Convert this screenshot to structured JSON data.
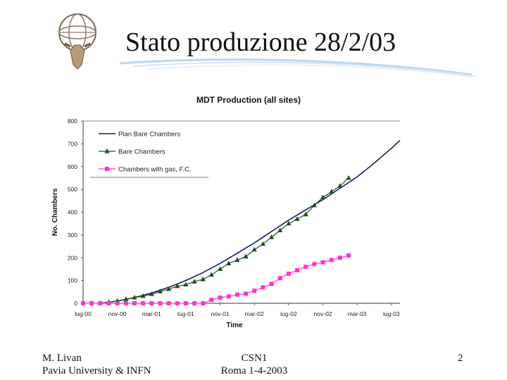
{
  "slide": {
    "title": "Stato produzione 28/2/03",
    "footer_left_line1": "M. Livan",
    "footer_left_line2": "Pavia University & INFN",
    "footer_center_line1": "CSN1",
    "footer_center_line2": "Roma 1-4-2003",
    "page_number": "2"
  },
  "colors": {
    "plan": "#1a1a5e",
    "bare": "#1f4f1f",
    "gas": "#ff33cc"
  },
  "chart_data": {
    "type": "line",
    "title": "MDT Production (all sites)",
    "xlabel": "Time",
    "ylabel": "No. Chambers",
    "ylim": [
      0,
      800
    ],
    "yticks": [
      0,
      100,
      200,
      300,
      400,
      500,
      600,
      700,
      800
    ],
    "xlim": [
      0,
      37
    ],
    "xticks": [
      {
        "label": "lug-00",
        "x": 0
      },
      {
        "label": "nov-00",
        "x": 4
      },
      {
        "label": "mar-01",
        "x": 8
      },
      {
        "label": "lug-01",
        "x": 12
      },
      {
        "label": "nov-01",
        "x": 16
      },
      {
        "label": "mar-02",
        "x": 20
      },
      {
        "label": "lug-02",
        "x": 24
      },
      {
        "label": "nov-02",
        "x": 28
      },
      {
        "label": "mar-03",
        "x": 32
      },
      {
        "label": "lug-03",
        "x": 36
      }
    ],
    "legend_position": "top-left",
    "series": [
      {
        "name": "Plan Bare Chambers",
        "marker": "none",
        "x": [
          2,
          4,
          6,
          8,
          10,
          12,
          14,
          16,
          18,
          20,
          22,
          24,
          26,
          28,
          30,
          32,
          34,
          36,
          37
        ],
        "y": [
          0,
          10,
          25,
          45,
          70,
          100,
          135,
          175,
          220,
          265,
          315,
          365,
          410,
          455,
          505,
          555,
          615,
          680,
          715
        ]
      },
      {
        "name": "Bare Chambers",
        "marker": "triangle",
        "x": [
          2,
          3,
          4,
          5,
          6,
          7,
          8,
          9,
          10,
          11,
          12,
          13,
          14,
          15,
          16,
          17,
          18,
          19,
          20,
          21,
          22,
          23,
          24,
          25,
          26,
          27,
          28,
          29,
          30,
          31
        ],
        "y": [
          0,
          5,
          10,
          18,
          25,
          32,
          40,
          52,
          62,
          75,
          82,
          95,
          105,
          125,
          150,
          175,
          190,
          205,
          235,
          260,
          290,
          320,
          350,
          370,
          390,
          430,
          465,
          490,
          515,
          550
        ]
      },
      {
        "name": "Chambers with gas, F.C.",
        "marker": "square",
        "x": [
          0,
          1,
          2,
          3,
          4,
          5,
          6,
          7,
          8,
          9,
          10,
          11,
          12,
          13,
          14,
          15,
          16,
          17,
          18,
          19,
          20,
          21,
          22,
          23,
          24,
          25,
          26,
          27,
          28,
          29,
          30,
          31
        ],
        "y": [
          0,
          0,
          0,
          0,
          0,
          0,
          0,
          0,
          0,
          0,
          0,
          0,
          0,
          0,
          0,
          15,
          25,
          30,
          38,
          42,
          55,
          70,
          85,
          110,
          130,
          145,
          160,
          172,
          180,
          190,
          200,
          210
        ]
      }
    ]
  }
}
